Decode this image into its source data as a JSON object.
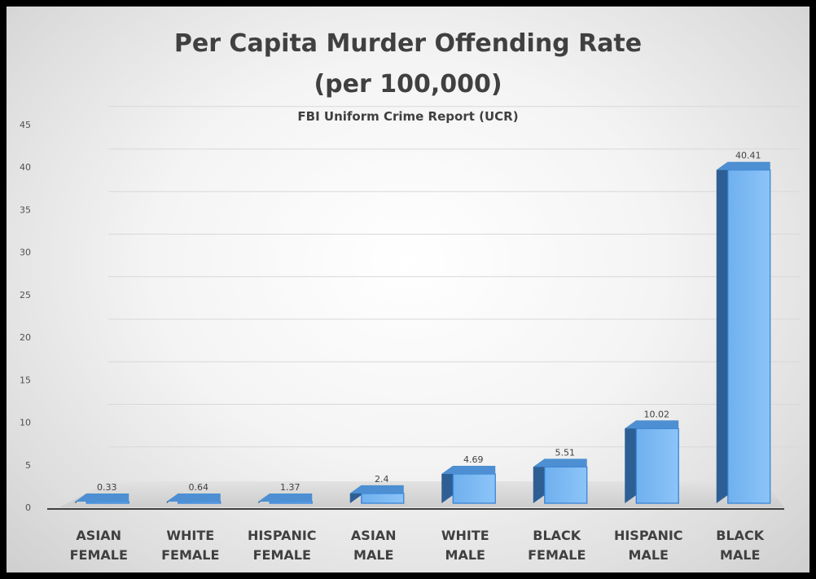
{
  "chart_data": {
    "type": "bar",
    "title": "Per Capita Murder Offending Rate",
    "title_line2": "(per 100,000)",
    "subtitle": "FBI Uniform Crime Report (UCR)",
    "categories": [
      [
        "ASIAN",
        "FEMALE"
      ],
      [
        "WHITE",
        "FEMALE"
      ],
      [
        "HISPANIC",
        "FEMALE"
      ],
      [
        "ASIAN",
        "MALE"
      ],
      [
        "WHITE",
        "MALE"
      ],
      [
        "BLACK",
        "FEMALE"
      ],
      [
        "HISPANIC",
        "MALE"
      ],
      [
        "BLACK",
        "MALE"
      ]
    ],
    "values": [
      0.33,
      0.64,
      1.37,
      2.4,
      4.69,
      5.51,
      10.02,
      40.41
    ],
    "data_labels": [
      "0.33",
      "0.64",
      "1.37",
      "2.4",
      "4.69",
      "5.51",
      "10.02",
      "40.41"
    ],
    "ylim": [
      0,
      45
    ],
    "yticks": [
      "0",
      "5",
      "10",
      "15",
      "20",
      "25",
      "30",
      "35",
      "40",
      "45"
    ],
    "grid": true,
    "bar_3d": true,
    "colors": {
      "bar_front": "#6fb0ee",
      "bar_front_light": "#8cc4f8",
      "bar_side": "#2e5f94",
      "bar_top": "#4d8fd2",
      "bar_edge": "#2f7fd6",
      "floor": "#cdcdcd",
      "axis": "#404040",
      "tick_text": "#505050",
      "gridline": "#d8d8d8"
    }
  }
}
